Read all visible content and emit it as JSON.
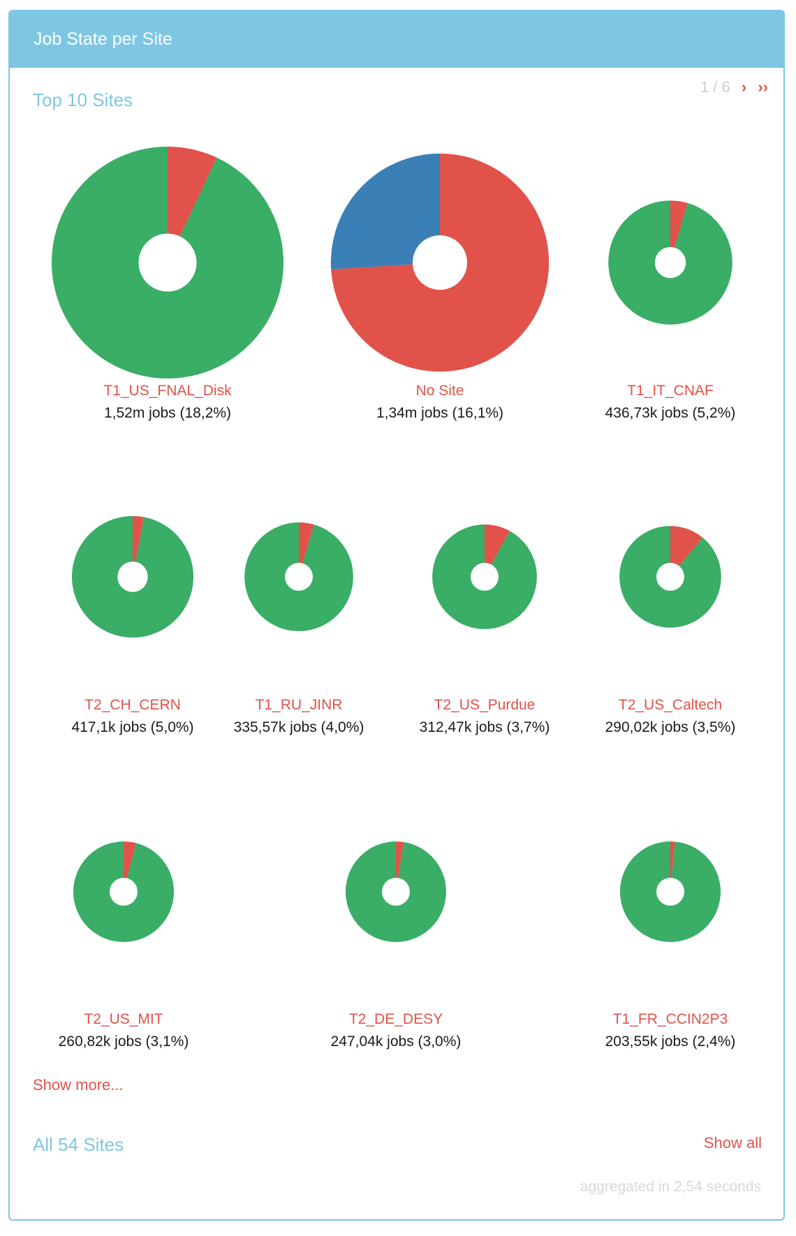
{
  "panel": {
    "title": "Job State per Site"
  },
  "top": {
    "title": "Top 10 Sites",
    "page": "1 / 6",
    "next": "›",
    "last": "››"
  },
  "show_more": "Show more...",
  "all": {
    "title": "All 54 Sites",
    "show_all": "Show all"
  },
  "footer": {
    "aggregated": "aggregated in 2,54 seconds"
  },
  "colors": {
    "green": "#3aad66",
    "red": "#e0524a",
    "blue": "#3a7fb5"
  },
  "chart_data": {
    "type": "pie",
    "sites": [
      {
        "name": "T1_US_FNAL_Disk",
        "jobs": "1,52m jobs (18,2%)",
        "share": 18.2,
        "slices": [
          {
            "state": "red",
            "value": 7
          },
          {
            "state": "green",
            "value": 93
          }
        ]
      },
      {
        "name": "No Site",
        "jobs": "1,34m jobs (16,1%)",
        "share": 16.1,
        "slices": [
          {
            "state": "red",
            "value": 74
          },
          {
            "state": "blue",
            "value": 26
          }
        ]
      },
      {
        "name": "T1_IT_CNAF",
        "jobs": "436,73k jobs (5,2%)",
        "share": 5.2,
        "slices": [
          {
            "state": "red",
            "value": 4.5
          },
          {
            "state": "green",
            "value": 95.5
          }
        ]
      },
      {
        "name": "T2_CH_CERN",
        "jobs": "417,1k jobs (5,0%)",
        "share": 5.0,
        "slices": [
          {
            "state": "red",
            "value": 3
          },
          {
            "state": "green",
            "value": 97
          }
        ]
      },
      {
        "name": "T1_RU_JINR",
        "jobs": "335,57k jobs (4,0%)",
        "share": 4.0,
        "slices": [
          {
            "state": "red",
            "value": 4.5
          },
          {
            "state": "green",
            "value": 95.5
          }
        ]
      },
      {
        "name": "T2_US_Purdue",
        "jobs": "312,47k jobs (3,7%)",
        "share": 3.7,
        "slices": [
          {
            "state": "red",
            "value": 8
          },
          {
            "state": "green",
            "value": 92
          }
        ]
      },
      {
        "name": "T2_US_Caltech",
        "jobs": "290,02k jobs (3,5%)",
        "share": 3.5,
        "slices": [
          {
            "state": "red",
            "value": 11
          },
          {
            "state": "green",
            "value": 89
          }
        ]
      },
      {
        "name": "T2_US_MIT",
        "jobs": "260,82k jobs (3,1%)",
        "share": 3.1,
        "slices": [
          {
            "state": "red",
            "value": 4
          },
          {
            "state": "green",
            "value": 96
          }
        ]
      },
      {
        "name": "T2_DE_DESY",
        "jobs": "247,04k jobs (3,0%)",
        "share": 3.0,
        "slices": [
          {
            "state": "red",
            "value": 2.5
          },
          {
            "state": "green",
            "value": 97.5
          }
        ]
      },
      {
        "name": "T1_FR_CCIN2P3",
        "jobs": "203,55k jobs (2,4%)",
        "share": 2.4,
        "slices": [
          {
            "state": "red",
            "value": 1.5
          },
          {
            "state": "green",
            "value": 98.5
          }
        ]
      }
    ]
  }
}
